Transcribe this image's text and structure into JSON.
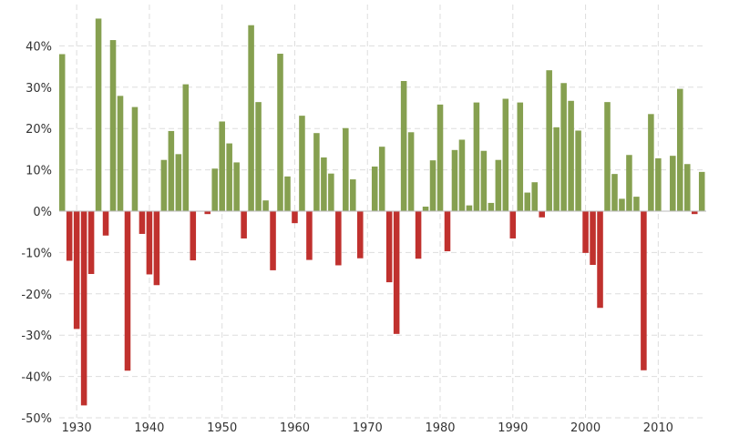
{
  "chart_data": {
    "type": "bar",
    "title": "",
    "xlabel": "",
    "ylabel": "",
    "ylim": [
      -50,
      50
    ],
    "xlim": [
      1927.6,
      2016.6
    ],
    "yticks": [
      -50,
      -40,
      -30,
      -20,
      -10,
      0,
      10,
      20,
      30,
      40
    ],
    "ytick_labels": [
      "-50%",
      "-40%",
      "-30%",
      "-20%",
      "-10%",
      "0%",
      "10%",
      "20%",
      "30%",
      "40%"
    ],
    "xticks": [
      1930,
      1940,
      1950,
      1960,
      1970,
      1980,
      1990,
      2000,
      2010
    ],
    "xtick_labels": [
      "1930",
      "1940",
      "1950",
      "1960",
      "1970",
      "1980",
      "1990",
      "2000",
      "2010"
    ],
    "grid": true,
    "positive_color": "#86a050",
    "negative_color": "#c0312e",
    "years": [
      1928,
      1929,
      1930,
      1931,
      1932,
      1933,
      1934,
      1935,
      1936,
      1937,
      1938,
      1939,
      1940,
      1941,
      1942,
      1943,
      1944,
      1945,
      1946,
      1947,
      1948,
      1949,
      1950,
      1951,
      1952,
      1953,
      1954,
      1955,
      1956,
      1957,
      1958,
      1959,
      1960,
      1961,
      1962,
      1963,
      1964,
      1965,
      1966,
      1967,
      1968,
      1969,
      1970,
      1971,
      1972,
      1973,
      1974,
      1975,
      1976,
      1977,
      1978,
      1979,
      1980,
      1981,
      1982,
      1983,
      1984,
      1985,
      1986,
      1987,
      1988,
      1989,
      1990,
      1991,
      1992,
      1993,
      1994,
      1995,
      1996,
      1997,
      1998,
      1999,
      2000,
      2001,
      2002,
      2003,
      2004,
      2005,
      2006,
      2007,
      2008,
      2009,
      2010,
      2011,
      2012,
      2013,
      2014,
      2015,
      2016
    ],
    "values": [
      38.0,
      -12.0,
      -28.5,
      -47.0,
      -15.2,
      46.6,
      -5.9,
      41.4,
      27.9,
      -38.6,
      25.2,
      -5.5,
      -15.3,
      -17.9,
      12.4,
      19.4,
      13.8,
      30.7,
      -11.9,
      0.0,
      -0.7,
      10.3,
      21.7,
      16.4,
      11.8,
      -6.6,
      45.0,
      26.4,
      2.6,
      -14.3,
      38.1,
      8.4,
      -2.9,
      23.1,
      -11.8,
      18.9,
      13.0,
      9.1,
      -13.1,
      20.1,
      7.7,
      -11.4,
      0.1,
      10.8,
      15.6,
      -17.2,
      -29.7,
      31.5,
      19.1,
      -11.5,
      1.1,
      12.3,
      25.8,
      -9.7,
      14.8,
      17.3,
      1.4,
      26.3,
      14.6,
      2.0,
      12.4,
      27.2,
      -6.6,
      26.3,
      4.5,
      7.0,
      -1.5,
      34.1,
      20.3,
      31.0,
      26.7,
      19.5,
      -10.1,
      -13.0,
      -23.4,
      26.4,
      9.0,
      3.0,
      13.6,
      3.5,
      -38.5,
      23.5,
      12.8,
      0.0,
      13.4,
      29.6,
      11.4,
      -0.7,
      9.5
    ]
  }
}
